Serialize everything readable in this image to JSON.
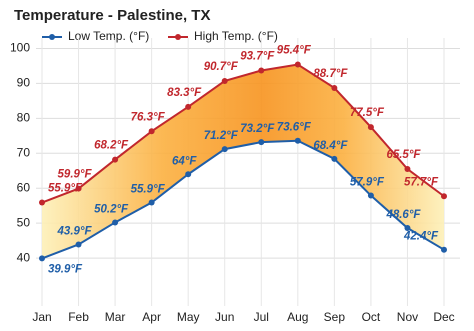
{
  "chart_data": {
    "type": "line",
    "title": "Temperature - Palestine, TX",
    "categories": [
      "Jan",
      "Feb",
      "Mar",
      "Apr",
      "May",
      "Jun",
      "Jul",
      "Aug",
      "Sep",
      "Oct",
      "Nov",
      "Dec"
    ],
    "series": [
      {
        "name": "Low Temp. (°F)",
        "color": "#1f5ea8",
        "values": [
          39.9,
          43.9,
          50.2,
          55.9,
          64,
          71.2,
          73.2,
          73.6,
          68.4,
          57.9,
          48.6,
          42.4
        ],
        "value_labels": [
          "39.9°F",
          "43.9°F",
          "50.2°F",
          "55.9°F",
          "64°F",
          "71.2°F",
          "73.2°F",
          "73.6°F",
          "68.4°F",
          "57.9°F",
          "48.6°F",
          "42.4°F"
        ]
      },
      {
        "name": "High Temp. (°F)",
        "color": "#c1272d",
        "values": [
          55.9,
          59.9,
          68.2,
          76.3,
          83.3,
          90.7,
          93.7,
          95.4,
          88.7,
          77.5,
          65.5,
          57.7
        ],
        "value_labels": [
          "55.9°F",
          "59.9°F",
          "68.2°F",
          "76.3°F",
          "83.3°F",
          "90.7°F",
          "93.7°F",
          "95.4°F",
          "88.7°F",
          "77.5°F",
          "65.5°F",
          "57.7°F"
        ]
      }
    ],
    "ylim": [
      28,
      103
    ],
    "yticks": [
      40,
      50,
      60,
      70,
      80,
      90,
      100
    ],
    "grid": true
  }
}
